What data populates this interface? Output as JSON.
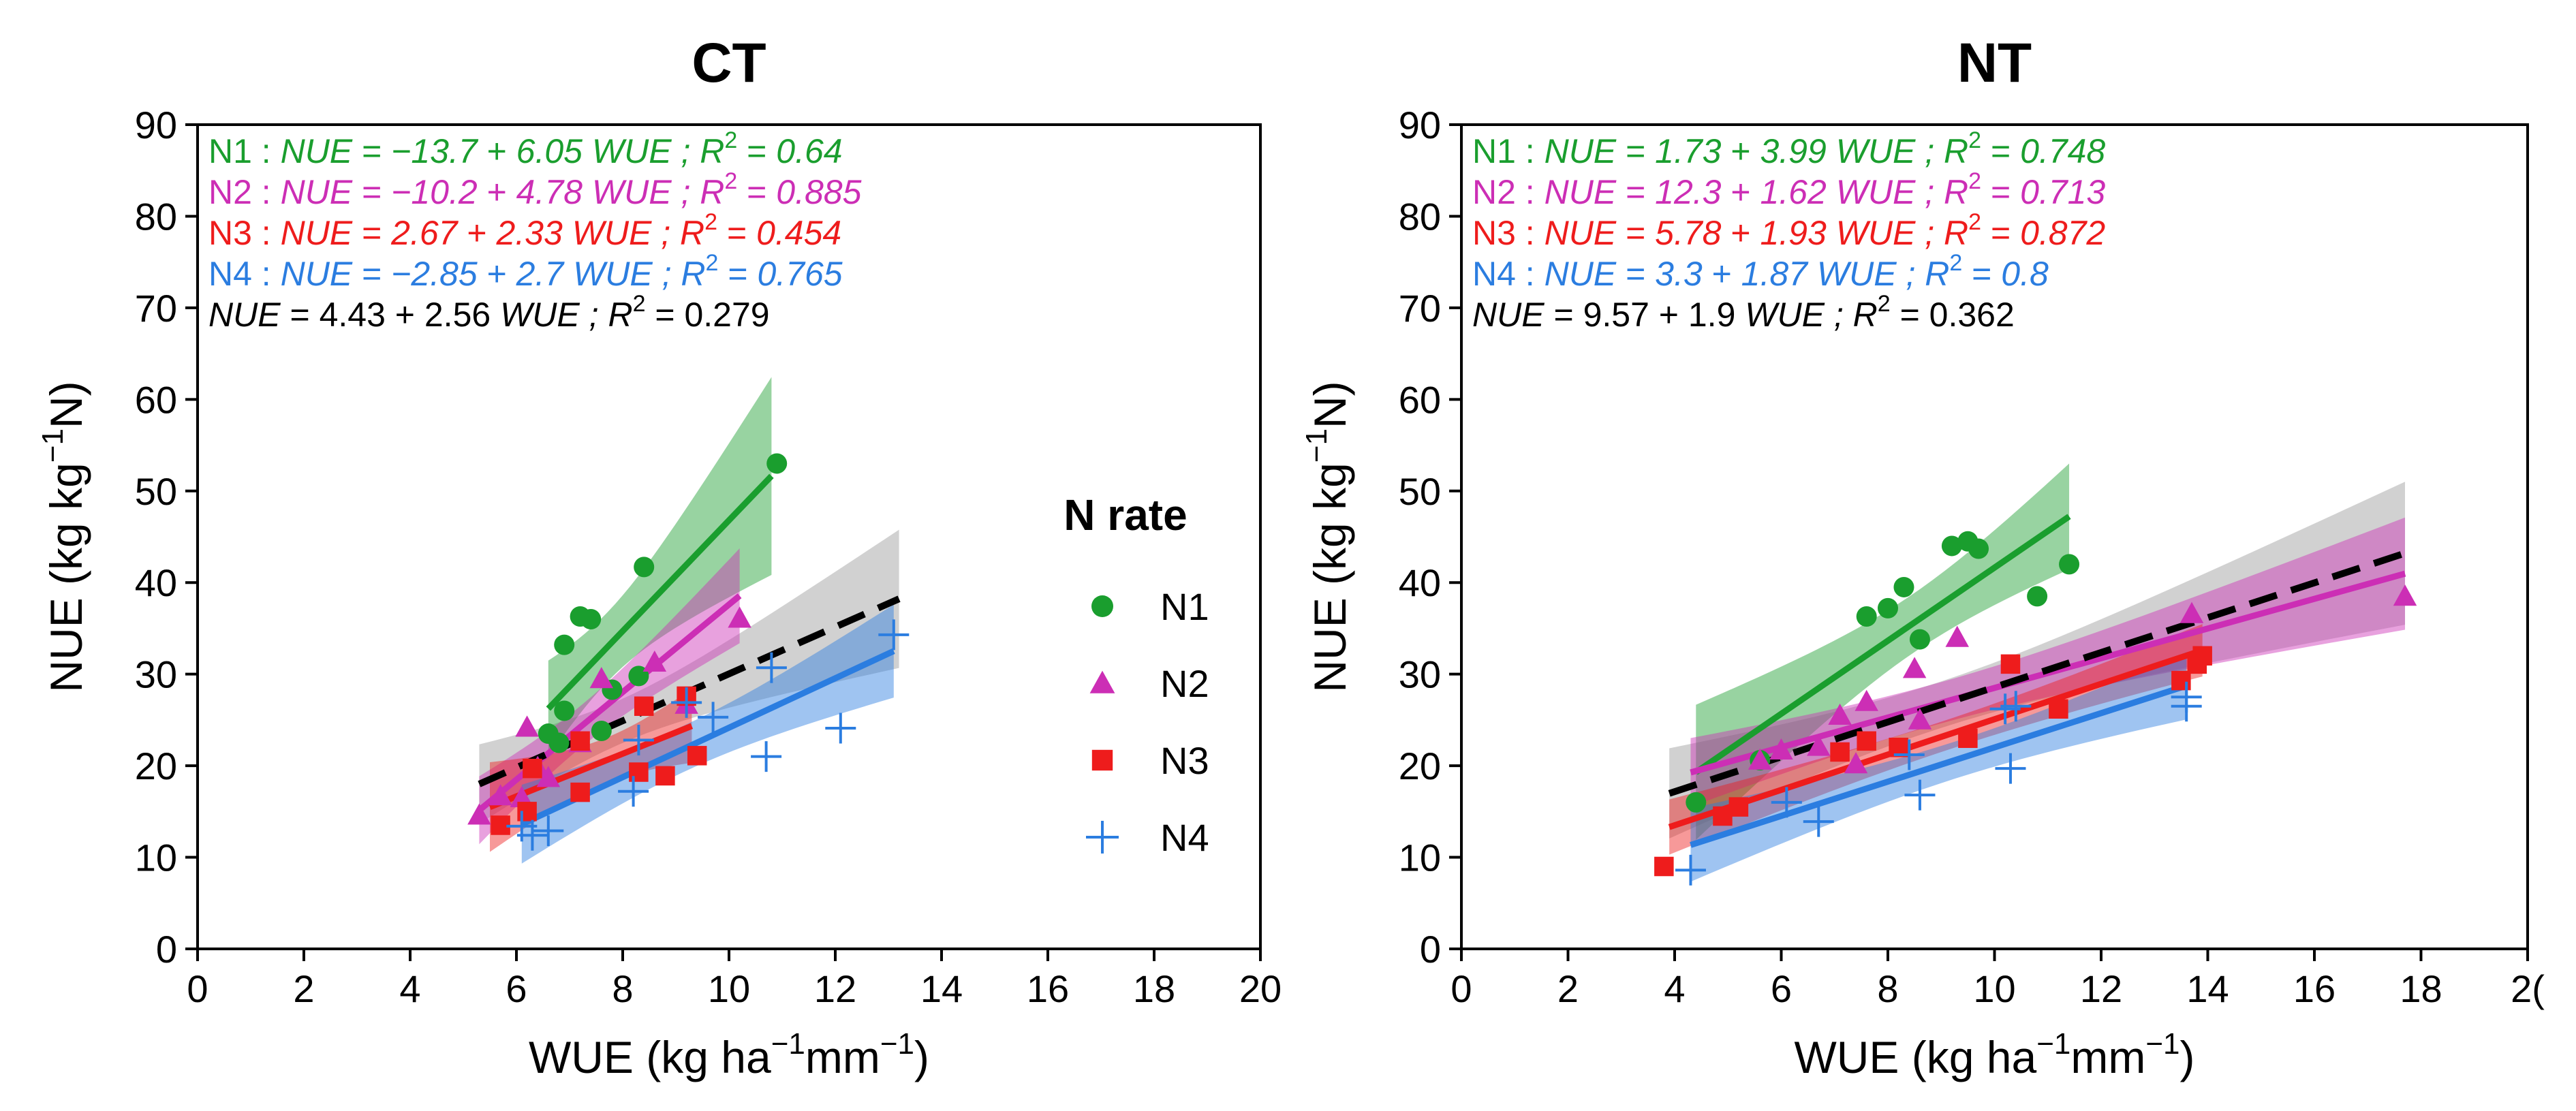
{
  "chart_data": [
    {
      "type": "scatter",
      "title": "CT",
      "xlabel": {
        "main": "WUE (kg ha",
        "sup1": "−1",
        "mid": "mm",
        "sup2": "−1",
        "end": ")"
      },
      "ylabel": {
        "main": "NUE (kg kg",
        "sup": "−1",
        "end": "N)"
      },
      "xlim": [
        0,
        20
      ],
      "ylim": [
        0,
        90
      ],
      "xticks": [
        "0",
        "2",
        "4",
        "6",
        "8",
        "10",
        "12",
        "14",
        "16",
        "18",
        "20"
      ],
      "yticks": [
        "0",
        "10",
        "20",
        "30",
        "40",
        "50",
        "60",
        "70",
        "80",
        "90"
      ],
      "series": [
        {
          "name": "N1",
          "color": "#1a9e2e",
          "marker": "circle",
          "intercept": -13.7,
          "slope": 6.05,
          "fit_range": [
            6.6,
            10.8
          ],
          "eq": {
            "label": "N1 :",
            "a": "−13.7",
            "b": "6.05",
            "r2": "0.64"
          },
          "points": [
            [
              6.6,
              23.5
            ],
            [
              6.8,
              22.5
            ],
            [
              6.9,
              26
            ],
            [
              6.9,
              33.2
            ],
            [
              7.2,
              36.3
            ],
            [
              7.4,
              36
            ],
            [
              7.6,
              23.8
            ],
            [
              7.8,
              28.3
            ],
            [
              8.3,
              29.8
            ],
            [
              8.4,
              41.7
            ],
            [
              10.9,
              53
            ]
          ]
        },
        {
          "name": "N2",
          "color": "#cc2eb5",
          "marker": "triangle",
          "intercept": -10.2,
          "slope": 4.78,
          "fit_range": [
            5.3,
            10.2
          ],
          "eq": {
            "label": "N2 :",
            "a": "−10.2",
            "b": "4.78",
            "r2": "0.885"
          },
          "points": [
            [
              5.3,
              14.6
            ],
            [
              5.7,
              16.7
            ],
            [
              6.1,
              16.5
            ],
            [
              6.2,
              24.2
            ],
            [
              6.4,
              19.8
            ],
            [
              6.6,
              18.7
            ],
            [
              7.2,
              22.5
            ],
            [
              7.6,
              29.5
            ],
            [
              8.6,
              31.3
            ],
            [
              9.2,
              26.7
            ],
            [
              10.2,
              36.1
            ]
          ]
        },
        {
          "name": "N3",
          "color": "#ee1c1c",
          "marker": "square",
          "intercept": 2.67,
          "slope": 2.33,
          "fit_range": [
            5.5,
            9.3
          ],
          "eq": {
            "label": "N3 :",
            "a": "2.67",
            "b": "2.33",
            "r2": "0.454"
          },
          "points": [
            [
              5.7,
              13.5
            ],
            [
              6.2,
              15
            ],
            [
              6.3,
              19.7
            ],
            [
              7.2,
              22.7
            ],
            [
              7.2,
              17.1
            ],
            [
              8.3,
              19.3
            ],
            [
              8.4,
              26.5
            ],
            [
              8.8,
              18.9
            ],
            [
              9.2,
              27.6
            ],
            [
              9.4,
              21.1
            ]
          ]
        },
        {
          "name": "N4",
          "color": "#2b7de0",
          "marker": "plus",
          "intercept": -2.85,
          "slope": 2.7,
          "fit_range": [
            6.1,
            13.1
          ],
          "eq": {
            "label": "N4 :",
            "a": "−2.85",
            "b": "2.7",
            "r2": "0.765"
          },
          "points": [
            [
              6.1,
              13.4
            ],
            [
              6.3,
              12.4
            ],
            [
              6.6,
              12.9
            ],
            [
              8.2,
              17.2
            ],
            [
              8.3,
              22.8
            ],
            [
              9.2,
              26.9
            ],
            [
              9.7,
              25.3
            ],
            [
              10.7,
              21
            ],
            [
              10.8,
              30.7
            ],
            [
              12.1,
              24.1
            ],
            [
              13.1,
              34.3
            ]
          ]
        }
      ],
      "overall": {
        "intercept": 4.43,
        "slope": 2.56,
        "fit_range": [
          5.3,
          13.2
        ],
        "eq": {
          "a": "4.43",
          "b": "2.56",
          "r2": "0.279"
        }
      }
    },
    {
      "type": "scatter",
      "title": "NT",
      "xlabel": {
        "main": "WUE (kg ha",
        "sup1": "−1",
        "mid": "mm",
        "sup2": "−1",
        "end": ")"
      },
      "ylabel": {
        "main": "NUE (kg kg",
        "sup": "−1",
        "end": "N)"
      },
      "xlim": [
        0,
        20
      ],
      "ylim": [
        0,
        90
      ],
      "xticks": [
        "0",
        "2",
        "4",
        "6",
        "8",
        "10",
        "12",
        "14",
        "16",
        "18",
        "2("
      ],
      "yticks": [
        "0",
        "10",
        "20",
        "30",
        "40",
        "50",
        "60",
        "70",
        "80",
        "90"
      ],
      "series": [
        {
          "name": "N1",
          "color": "#1a9e2e",
          "marker": "circle",
          "intercept": 1.73,
          "slope": 3.99,
          "fit_range": [
            4.4,
            11.4
          ],
          "eq": {
            "label": "N1 :",
            "a": "1.73",
            "b": "3.99",
            "r2": "0.748"
          },
          "points": [
            [
              4.4,
              16
            ],
            [
              5.6,
              20.6
            ],
            [
              7.6,
              36.3
            ],
            [
              8,
              37.2
            ],
            [
              8.3,
              39.5
            ],
            [
              8.6,
              33.8
            ],
            [
              9.2,
              44
            ],
            [
              9.5,
              44.5
            ],
            [
              9.7,
              43.7
            ],
            [
              10.8,
              38.5
            ],
            [
              11.4,
              42
            ]
          ]
        },
        {
          "name": "N2",
          "color": "#cc2eb5",
          "marker": "triangle",
          "intercept": 12.3,
          "slope": 1.62,
          "fit_range": [
            4.3,
            17.7
          ],
          "eq": {
            "label": "N2 :",
            "a": "12.3",
            "b": "1.62",
            "r2": "0.713"
          },
          "points": [
            [
              5.6,
              20.6
            ],
            [
              6,
              21.7
            ],
            [
              6.7,
              22.1
            ],
            [
              7.1,
              25.5
            ],
            [
              7.4,
              20.2
            ],
            [
              7.6,
              27
            ],
            [
              8.5,
              30.6
            ],
            [
              8.6,
              25
            ],
            [
              9.3,
              34
            ],
            [
              13.7,
              36.6
            ],
            [
              17.7,
              38.5
            ]
          ]
        },
        {
          "name": "N3",
          "color": "#ee1c1c",
          "marker": "square",
          "intercept": 5.78,
          "slope": 1.93,
          "fit_range": [
            3.9,
            13.9
          ],
          "eq": {
            "label": "N3 :",
            "a": "5.78",
            "b": "1.93",
            "r2": "0.872"
          },
          "points": [
            [
              3.8,
              9
            ],
            [
              4.9,
              14.5
            ],
            [
              5.2,
              15.5
            ],
            [
              7.1,
              21.5
            ],
            [
              7.6,
              22.7
            ],
            [
              8.2,
              22
            ],
            [
              9.5,
              23
            ],
            [
              10.3,
              31.1
            ],
            [
              11.2,
              26.2
            ],
            [
              13.5,
              29.3
            ],
            [
              13.8,
              31.1
            ],
            [
              13.9,
              32
            ]
          ]
        },
        {
          "name": "N4",
          "color": "#2b7de0",
          "marker": "plus",
          "intercept": 3.3,
          "slope": 1.87,
          "fit_range": [
            4.3,
            13.6
          ],
          "eq": {
            "label": "N4 :",
            "a": "3.3",
            "b": "1.87",
            "r2": "0.8"
          },
          "points": [
            [
              4.3,
              8.6
            ],
            [
              6.1,
              16
            ],
            [
              6.7,
              13.9
            ],
            [
              8.4,
              21.2
            ],
            [
              8.6,
              16.8
            ],
            [
              10.2,
              26.2
            ],
            [
              10.3,
              19.7
            ],
            [
              10.4,
              26.5
            ],
            [
              13.6,
              26.5
            ],
            [
              13.6,
              27.5
            ]
          ]
        }
      ],
      "overall": {
        "intercept": 9.57,
        "slope": 1.9,
        "fit_range": [
          3.9,
          17.7
        ],
        "eq": {
          "a": "9.57",
          "b": "1.9",
          "r2": "0.362"
        }
      }
    }
  ],
  "legend": {
    "title": "N rate",
    "items": [
      {
        "label": "N1",
        "color": "#1a9e2e",
        "marker": "circle"
      },
      {
        "label": "N2",
        "color": "#cc2eb5",
        "marker": "triangle"
      },
      {
        "label": "N3",
        "color": "#ee1c1c",
        "marker": "square"
      },
      {
        "label": "N4",
        "color": "#2b7de0",
        "marker": "plus"
      }
    ]
  },
  "text": {
    "nue": "NUE",
    "wue": "WUE",
    "r2": "R",
    "plus": "+",
    "equals": "=",
    "sep": ";",
    "two": "2"
  }
}
